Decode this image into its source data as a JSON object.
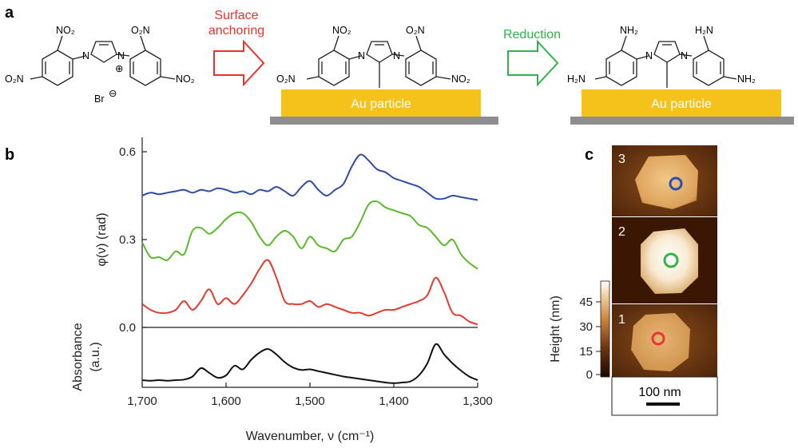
{
  "panels": {
    "a": "a",
    "b": "b",
    "c": "c"
  },
  "scheme": {
    "step1_label_line1": "Surface",
    "step1_label_line2": "anchoring",
    "step2_label": "Reduction",
    "particle_label": "Au particle",
    "arrow1_color": "#e8322e",
    "arrow2_color": "#2fb34a",
    "particle_color": "#f4c21b",
    "substrate_color": "#8e8e8e",
    "molecule1": {
      "top_left_group": "NO₂",
      "top_right_group": "O₂N",
      "left_end_group": "O₂N",
      "right_end_group": "NO₂",
      "counterion": "Br",
      "counterion_charge": "⊖",
      "ring_charge": "⊕",
      "ring_N1": "N",
      "ring_N2": "N"
    },
    "molecule2": {
      "top_left_group": "NO₂",
      "top_right_group": "O₂N",
      "left_end_group": "O₂N",
      "right_end_group": "NO₂",
      "ring_N1": "N",
      "ring_N2": "N"
    },
    "molecule3": {
      "top_left_group": "NH₂",
      "top_right_group": "H₂N",
      "left_end_group": "H₂N",
      "right_end_group": "NH₂",
      "ring_N1": "N",
      "ring_N2": "N"
    }
  },
  "chart_data": {
    "type": "line",
    "x_range": [
      1700,
      1300
    ],
    "x_ticks": [
      "1,700",
      "1,600",
      "1,500",
      "1,400",
      "1,300"
    ],
    "x_tick_values": [
      1700,
      1600,
      1500,
      1400,
      1300
    ],
    "xlabel": "Wavenumber, ν (cm⁻¹)",
    "upper": {
      "ylabel": "φ(ν) (rad)",
      "y_ticks": [
        "0.0",
        "0.3",
        "0.6"
      ],
      "y_tick_values": [
        0.0,
        0.3,
        0.6
      ],
      "ylim": [
        0.0,
        0.6
      ],
      "series": [
        {
          "color": "#2e4ba8",
          "x": [
            1700,
            1690,
            1680,
            1670,
            1660,
            1650,
            1640,
            1630,
            1620,
            1610,
            1600,
            1590,
            1580,
            1570,
            1560,
            1550,
            1540,
            1530,
            1520,
            1510,
            1500,
            1490,
            1480,
            1470,
            1460,
            1450,
            1440,
            1430,
            1420,
            1410,
            1400,
            1390,
            1380,
            1370,
            1360,
            1350,
            1340,
            1330,
            1320,
            1310,
            1300
          ],
          "y": [
            0.45,
            0.46,
            0.455,
            0.46,
            0.465,
            0.47,
            0.46,
            0.47,
            0.465,
            0.475,
            0.47,
            0.46,
            0.465,
            0.455,
            0.47,
            0.465,
            0.48,
            0.465,
            0.45,
            0.48,
            0.5,
            0.47,
            0.45,
            0.47,
            0.49,
            0.55,
            0.59,
            0.57,
            0.54,
            0.53,
            0.51,
            0.5,
            0.49,
            0.48,
            0.46,
            0.44,
            0.44,
            0.45,
            0.445,
            0.44,
            0.435
          ]
        },
        {
          "color": "#5cb82c",
          "x": [
            1700,
            1690,
            1680,
            1670,
            1660,
            1650,
            1640,
            1630,
            1620,
            1610,
            1600,
            1590,
            1580,
            1570,
            1560,
            1550,
            1540,
            1530,
            1520,
            1510,
            1500,
            1490,
            1480,
            1470,
            1460,
            1450,
            1440,
            1430,
            1420,
            1410,
            1400,
            1390,
            1380,
            1370,
            1360,
            1350,
            1340,
            1330,
            1320,
            1310,
            1300
          ],
          "y": [
            0.29,
            0.24,
            0.24,
            0.23,
            0.26,
            0.25,
            0.33,
            0.34,
            0.32,
            0.34,
            0.37,
            0.39,
            0.39,
            0.36,
            0.31,
            0.28,
            0.31,
            0.33,
            0.31,
            0.27,
            0.31,
            0.28,
            0.27,
            0.26,
            0.3,
            0.31,
            0.36,
            0.42,
            0.43,
            0.41,
            0.4,
            0.39,
            0.38,
            0.35,
            0.34,
            0.31,
            0.28,
            0.3,
            0.25,
            0.22,
            0.2
          ]
        },
        {
          "color": "#e23a2e",
          "x": [
            1700,
            1690,
            1680,
            1670,
            1660,
            1650,
            1640,
            1630,
            1620,
            1610,
            1600,
            1590,
            1580,
            1570,
            1560,
            1550,
            1540,
            1530,
            1520,
            1510,
            1500,
            1490,
            1480,
            1470,
            1460,
            1450,
            1440,
            1430,
            1420,
            1410,
            1400,
            1390,
            1380,
            1370,
            1360,
            1350,
            1340,
            1330,
            1320,
            1310,
            1300
          ],
          "y": [
            0.08,
            0.06,
            0.05,
            0.05,
            0.06,
            0.09,
            0.06,
            0.09,
            0.13,
            0.08,
            0.1,
            0.08,
            0.11,
            0.15,
            0.2,
            0.23,
            0.17,
            0.09,
            0.08,
            0.08,
            0.09,
            0.07,
            0.08,
            0.07,
            0.06,
            0.05,
            0.05,
            0.04,
            0.05,
            0.06,
            0.06,
            0.07,
            0.08,
            0.09,
            0.11,
            0.17,
            0.12,
            0.05,
            0.04,
            0.02,
            0.01
          ]
        }
      ]
    },
    "lower": {
      "ylabel": "Absorbance (a.u.)",
      "series": [
        {
          "color": "#111111",
          "x": [
            1700,
            1690,
            1680,
            1670,
            1660,
            1650,
            1640,
            1630,
            1620,
            1610,
            1600,
            1590,
            1580,
            1570,
            1560,
            1550,
            1540,
            1530,
            1520,
            1510,
            1500,
            1490,
            1480,
            1470,
            1460,
            1450,
            1440,
            1430,
            1420,
            1410,
            1400,
            1390,
            1380,
            1370,
            1360,
            1350,
            1340,
            1330,
            1320,
            1310,
            1300
          ],
          "y": [
            0.12,
            0.11,
            0.12,
            0.11,
            0.12,
            0.13,
            0.18,
            0.32,
            0.24,
            0.16,
            0.2,
            0.36,
            0.3,
            0.46,
            0.58,
            0.64,
            0.55,
            0.42,
            0.33,
            0.29,
            0.3,
            0.27,
            0.24,
            0.21,
            0.18,
            0.16,
            0.14,
            0.12,
            0.1,
            0.08,
            0.07,
            0.08,
            0.1,
            0.2,
            0.4,
            0.72,
            0.55,
            0.4,
            0.28,
            0.18,
            0.12
          ]
        }
      ]
    }
  },
  "afm": {
    "scale_bar_label": "100 nm",
    "colorbar_label": "Height (nm)",
    "colorbar_ticks": [
      "0",
      "15",
      "30",
      "45"
    ],
    "images": [
      {
        "label": "3",
        "marker_color": "#2c4fae"
      },
      {
        "label": "2",
        "marker_color": "#38b04a"
      },
      {
        "label": "1",
        "marker_color": "#e23a2e"
      }
    ]
  }
}
